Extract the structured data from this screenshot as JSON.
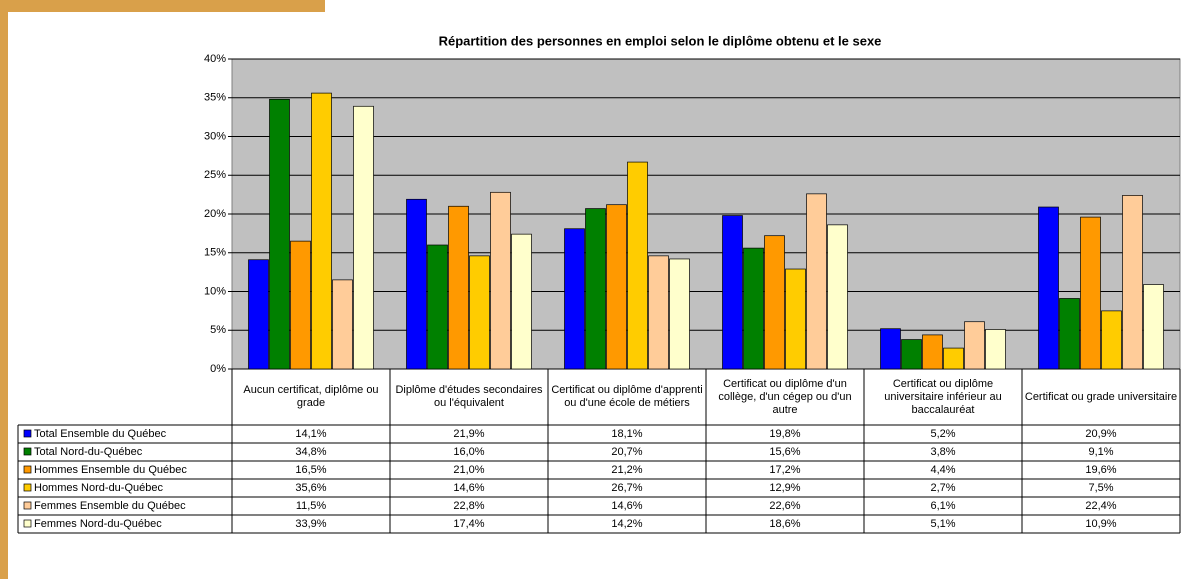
{
  "chart_data": {
    "type": "bar",
    "title": "Répartition des personnes en emploi selon le diplôme obtenu et le sexe",
    "categories": [
      "Aucun certificat, diplôme ou grade",
      "Diplôme d'études secondaires ou l'équivalent",
      "Certificat ou diplôme d'apprenti ou d'une école de métiers",
      "Certificat ou diplôme d'un collège, d'un cégep ou d'un autre",
      "Certificat ou diplôme universitaire inférieur au baccalauréat",
      "Certificat ou grade universitaire"
    ],
    "series": [
      {
        "name": "Total Ensemble du Québec",
        "color": "#0000ff",
        "values": [
          14.1,
          21.9,
          18.1,
          19.8,
          5.2,
          20.9
        ],
        "value_labels": [
          "14,1%",
          "21,9%",
          "18,1%",
          "19,8%",
          "5,2%",
          "20,9%"
        ]
      },
      {
        "name": "Total Nord-du-Québec",
        "color": "#008000",
        "values": [
          34.8,
          16.0,
          20.7,
          15.6,
          3.8,
          9.1
        ],
        "value_labels": [
          "34,8%",
          "16,0%",
          "20,7%",
          "15,6%",
          "3,8%",
          "9,1%"
        ]
      },
      {
        "name": "Hommes Ensemble du Québec",
        "color": "#ff9900",
        "values": [
          16.5,
          21.0,
          21.2,
          17.2,
          4.4,
          19.6
        ],
        "value_labels": [
          "16,5%",
          "21,0%",
          "21,2%",
          "17,2%",
          "4,4%",
          "19,6%"
        ]
      },
      {
        "name": "Hommes Nord-du-Québec",
        "color": "#ffcc00",
        "values": [
          35.6,
          14.6,
          26.7,
          12.9,
          2.7,
          7.5
        ],
        "value_labels": [
          "35,6%",
          "14,6%",
          "26,7%",
          "12,9%",
          "2,7%",
          "7,5%"
        ]
      },
      {
        "name": "Femmes Ensemble du Québec",
        "color": "#ffcc99",
        "values": [
          11.5,
          22.8,
          14.6,
          22.6,
          6.1,
          22.4
        ],
        "value_labels": [
          "11,5%",
          "22,8%",
          "14,6%",
          "22,6%",
          "6,1%",
          "22,4%"
        ]
      },
      {
        "name": "Femmes Nord-du-Québec",
        "color": "#ffffcc",
        "values": [
          33.9,
          17.4,
          14.2,
          18.6,
          5.1,
          10.9
        ],
        "value_labels": [
          "33,9%",
          "17,4%",
          "14,2%",
          "18,6%",
          "5,1%",
          "10,9%"
        ]
      }
    ],
    "ylim": [
      0,
      40
    ],
    "yticks": [
      {
        "value": 0,
        "label": "0%"
      },
      {
        "value": 5,
        "label": "5%"
      },
      {
        "value": 10,
        "label": "10%"
      },
      {
        "value": 15,
        "label": "15%"
      },
      {
        "value": 20,
        "label": "20%"
      },
      {
        "value": 25,
        "label": "25%"
      },
      {
        "value": 30,
        "label": "30%"
      },
      {
        "value": 35,
        "label": "35%"
      },
      {
        "value": 40,
        "label": "40%"
      }
    ],
    "grid": true
  }
}
